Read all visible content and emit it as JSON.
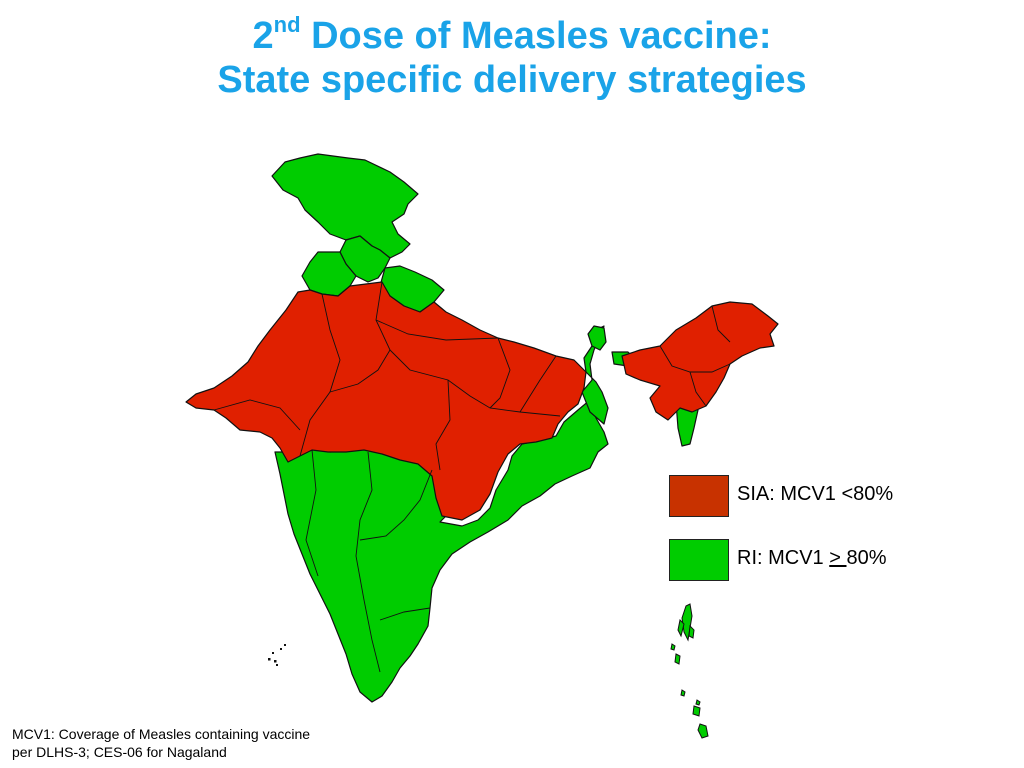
{
  "title": {
    "line1_num": "2",
    "line1_sup": "nd",
    "line1_rest": " Dose of Measles vaccine:",
    "line2": "State specific delivery strategies"
  },
  "legend": {
    "sia": {
      "label": "SIA: MCV1 <80%",
      "color": "#e02000"
    },
    "ri": {
      "label_prefix": "RI: MCV1 ",
      "label_symbol": "> ",
      "label_suffix": "80%",
      "color": "#00cc00"
    }
  },
  "footnote": {
    "line1": "MCV1: Coverage of Measles containing vaccine",
    "line2": "per DLHS-3; CES-06 for Nagaland"
  }
}
